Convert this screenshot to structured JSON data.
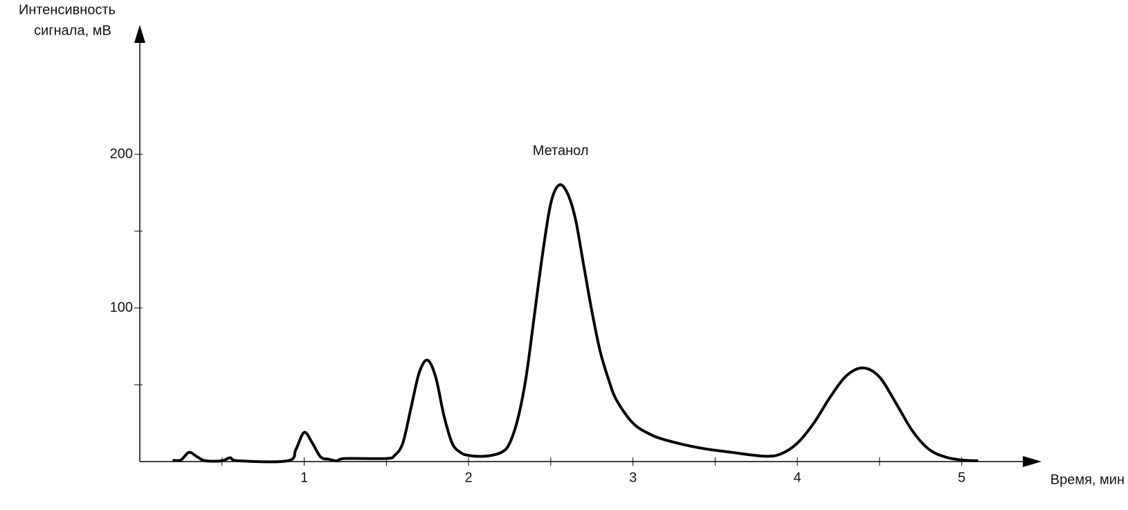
{
  "chart_data": {
    "type": "line",
    "ylabel": [
      "Интенсивность",
      "сигнала, мВ"
    ],
    "xlabel": "Время, мин",
    "annotation": {
      "text": "Метанол",
      "x": 2.56,
      "y": 202
    },
    "xlim": [
      0,
      5.46
    ],
    "ylim": [
      0,
      282
    ],
    "xticks": [
      1,
      2,
      3,
      4,
      5
    ],
    "xminorticks": [
      0.5,
      1.5,
      2.5,
      3.5,
      4.5
    ],
    "yticks": [
      100,
      200
    ],
    "yminorticks": [
      50,
      150
    ],
    "x": [
      0.2,
      0.25,
      0.3,
      0.35,
      0.4,
      0.5,
      0.55,
      0.6,
      0.9,
      0.95,
      1.0,
      1.05,
      1.1,
      1.15,
      1.2,
      1.25,
      1.5,
      1.55,
      1.6,
      1.65,
      1.7,
      1.75,
      1.8,
      1.85,
      1.9,
      1.95,
      2.0,
      2.1,
      2.2,
      2.25,
      2.3,
      2.35,
      2.4,
      2.45,
      2.5,
      2.55,
      2.6,
      2.65,
      2.7,
      2.75,
      2.8,
      2.85,
      2.9,
      3.0,
      3.1,
      3.2,
      3.4,
      3.6,
      3.8,
      3.9,
      4.0,
      4.1,
      4.2,
      4.3,
      4.4,
      4.5,
      4.6,
      4.7,
      4.8,
      4.9,
      5.0,
      5.1
    ],
    "series": [
      {
        "color": "#000000",
        "values": [
          0.8,
          1,
          6,
          3,
          0.5,
          0.5,
          2.5,
          0.5,
          0.5,
          8,
          19,
          12,
          3,
          1.5,
          0.5,
          2,
          2,
          4,
          12,
          35,
          58,
          66,
          55,
          30,
          12,
          6,
          4,
          3.5,
          6,
          12,
          28,
          55,
          95,
          135,
          168,
          180,
          175,
          158,
          128,
          98,
          72,
          54,
          40,
          25,
          18,
          14,
          9,
          6,
          3.5,
          5,
          12,
          25,
          42,
          56,
          61,
          55,
          38,
          20,
          8,
          3,
          1,
          0.5
        ]
      }
    ]
  }
}
